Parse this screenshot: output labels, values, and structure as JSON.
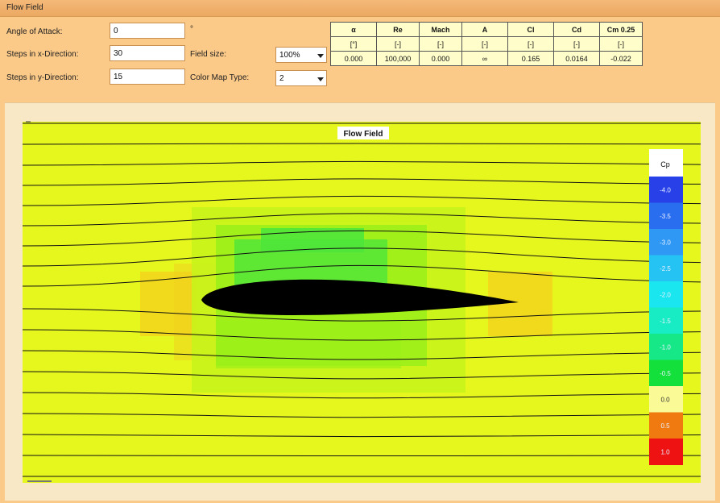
{
  "window": {
    "title": "Flow Field"
  },
  "form": {
    "aoa_label": "Angle of Attack:",
    "aoa_value": "0",
    "aoa_unit": "°",
    "steps_x_label": "Steps in x-Direction:",
    "steps_x_value": "30",
    "steps_y_label": "Steps in y-Direction:",
    "steps_y_value": "15",
    "field_size_label": "Field size:",
    "field_size_value": "100%",
    "color_map_label": "Color Map Type:",
    "color_map_value": "2"
  },
  "results_table": {
    "headers": [
      "α",
      "Re",
      "Mach",
      "A",
      "Cl",
      "Cd",
      "Cm 0.25"
    ],
    "units": [
      "[°]",
      "[-]",
      "[-]",
      "[-]",
      "[-]",
      "[-]",
      "[-]"
    ],
    "values": [
      "0.000",
      "100,000",
      "0.000",
      "∞",
      "0.165",
      "0.0164",
      "-0.022"
    ]
  },
  "plot": {
    "title": "Flow Field",
    "colorbar_title": "Cp",
    "colorbar_labels": [
      "-4.0",
      "-3.5",
      "-3.0",
      "-2.5",
      "-2.0",
      "-1.5",
      "-1.0",
      "-0.5",
      "0.0",
      "0.5",
      "1.0"
    ],
    "colorbar_colors": [
      "#2840e8",
      "#2a6ef0",
      "#2e98f4",
      "#25c2f4",
      "#1ae6f0",
      "#18ecc4",
      "#16e888",
      "#14e03c",
      "#fafa96",
      "#f07a10",
      "#ee1212"
    ],
    "colors": {
      "background_field": "#e6f71e",
      "suction_light": "#c6f41a",
      "suction_mid": "#9cf01a",
      "suction_strong": "#4fe63a",
      "stagnation": "#f7c21a",
      "airfoil": "#000000",
      "streamline": "#111111"
    }
  }
}
